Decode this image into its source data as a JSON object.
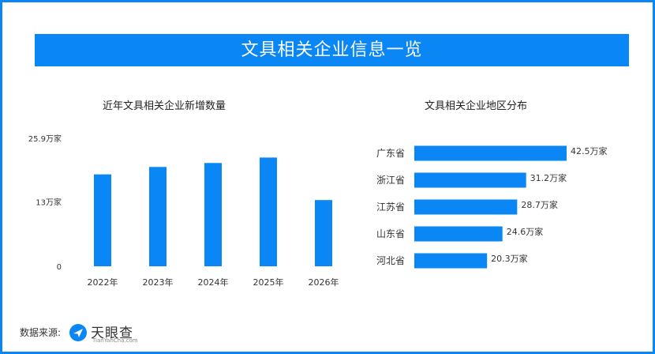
{
  "header": {
    "title": "文具相关企业信息一览"
  },
  "footer": {
    "source_label": "数据来源:",
    "logo_name": "天眼查",
    "logo_sub": "TianYanCha.com"
  },
  "colors": {
    "accent": "#0a86f5",
    "bar": "#0a86f5"
  },
  "chart_data": [
    {
      "type": "bar",
      "title": "近年文具相关企业新增数量",
      "categories": [
        "2022年",
        "2023年",
        "2024年",
        "2025年",
        "2026年"
      ],
      "values": [
        18.6,
        20.1,
        20.9,
        22.0,
        13.4
      ],
      "unit": "万家",
      "yticks": [
        {
          "value": 0,
          "label": "0"
        },
        {
          "value": 13,
          "label": "13万家"
        },
        {
          "value": 25.9,
          "label": "25.9万家"
        }
      ],
      "ylim": [
        0,
        25.9
      ],
      "grid": false
    },
    {
      "type": "bar",
      "orientation": "horizontal",
      "title": "文具相关企业地区分布",
      "categories": [
        "广东省",
        "浙江省",
        "江苏省",
        "山东省",
        "河北省"
      ],
      "values": [
        42.5,
        31.2,
        28.7,
        24.6,
        20.3
      ],
      "data_labels": [
        "42.5万家",
        "31.2万家",
        "28.7万家",
        "24.6万家",
        "20.3万家"
      ],
      "unit": "万家",
      "grid": false
    }
  ]
}
